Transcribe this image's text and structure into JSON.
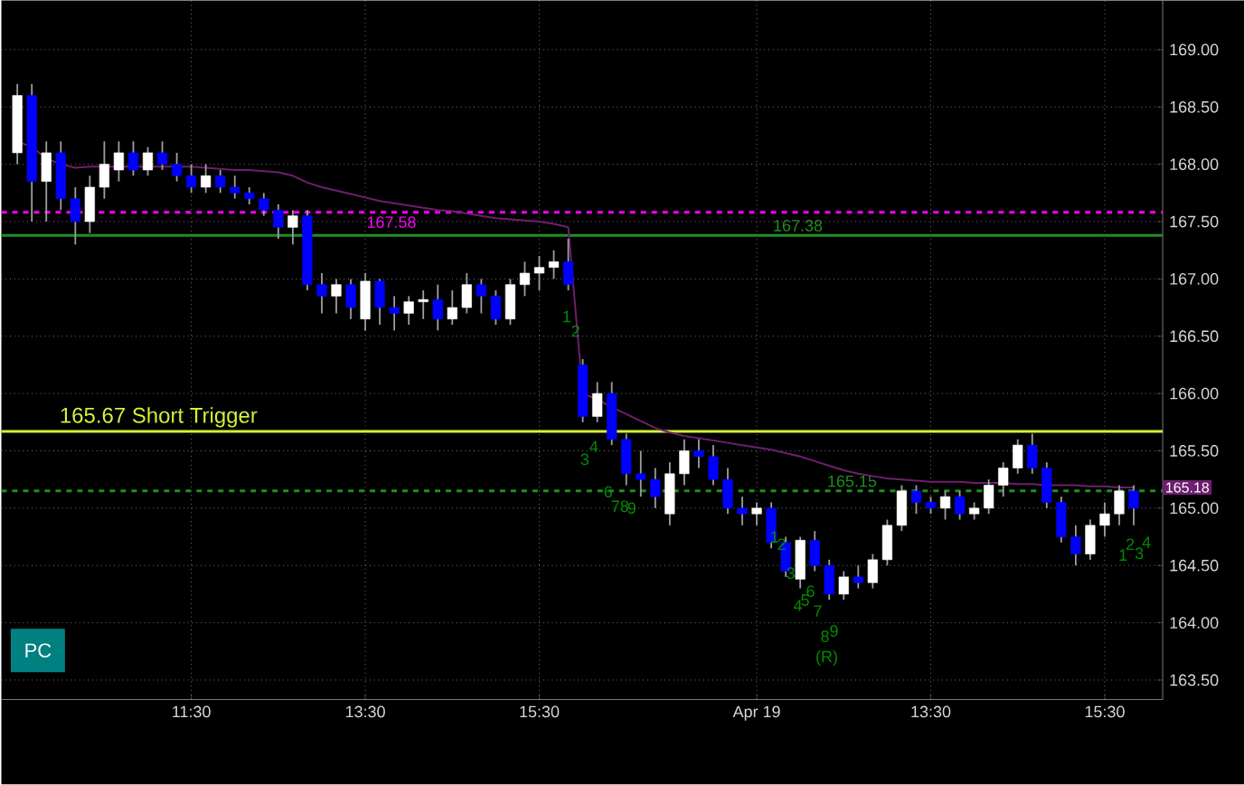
{
  "chart_data": {
    "type": "candlestick",
    "categories": [
      null,
      null,
      null,
      null,
      null,
      null,
      null,
      null,
      null,
      null,
      null,
      null,
      "11:30",
      null,
      null,
      null,
      null,
      null,
      null,
      null,
      null,
      null,
      null,
      null,
      "13:30",
      null,
      null,
      null,
      null,
      null,
      null,
      null,
      null,
      null,
      null,
      null,
      "15:30",
      null,
      null,
      null,
      null,
      null,
      null,
      null,
      null,
      null,
      null,
      null,
      null,
      null,
      null,
      "Apr 19",
      null,
      null,
      null,
      null,
      null,
      null,
      null,
      null,
      null,
      null,
      null,
      "13:30",
      null,
      null,
      null,
      null,
      null,
      null,
      null,
      null,
      null,
      null,
      null,
      "15:30",
      null,
      null
    ],
    "ohlc": [
      [
        168.1,
        168.7,
        168.0,
        168.6
      ],
      [
        168.6,
        168.7,
        167.5,
        167.85
      ],
      [
        167.85,
        168.2,
        167.5,
        168.1
      ],
      [
        168.1,
        168.2,
        167.6,
        167.7
      ],
      [
        167.7,
        167.8,
        167.3,
        167.5
      ],
      [
        167.5,
        167.9,
        167.4,
        167.8
      ],
      [
        167.8,
        168.2,
        167.7,
        168.0
      ],
      [
        167.95,
        168.2,
        167.85,
        168.1
      ],
      [
        168.1,
        168.2,
        167.9,
        167.95
      ],
      [
        167.95,
        168.15,
        167.9,
        168.1
      ],
      [
        168.1,
        168.2,
        167.95,
        168.0
      ],
      [
        168.0,
        168.1,
        167.85,
        167.9
      ],
      [
        167.9,
        168.0,
        167.75,
        167.8
      ],
      [
        167.8,
        168.0,
        167.75,
        167.9
      ],
      [
        167.9,
        167.95,
        167.75,
        167.8
      ],
      [
        167.8,
        167.9,
        167.7,
        167.75
      ],
      [
        167.75,
        167.8,
        167.65,
        167.7
      ],
      [
        167.7,
        167.75,
        167.55,
        167.6
      ],
      [
        167.6,
        167.65,
        167.35,
        167.45
      ],
      [
        167.45,
        167.6,
        167.3,
        167.55
      ],
      [
        167.55,
        167.6,
        166.9,
        166.95
      ],
      [
        166.95,
        167.05,
        166.7,
        166.85
      ],
      [
        166.85,
        167.0,
        166.7,
        166.95
      ],
      [
        166.95,
        167.0,
        166.65,
        166.75
      ],
      [
        166.65,
        167.05,
        166.55,
        166.98
      ],
      [
        166.98,
        167.0,
        166.6,
        166.75
      ],
      [
        166.75,
        166.85,
        166.55,
        166.7
      ],
      [
        166.7,
        166.85,
        166.6,
        166.8
      ],
      [
        166.8,
        166.9,
        166.65,
        166.82
      ],
      [
        166.82,
        166.95,
        166.55,
        166.65
      ],
      [
        166.65,
        166.9,
        166.6,
        166.75
      ],
      [
        166.75,
        167.05,
        166.7,
        166.95
      ],
      [
        166.95,
        167.0,
        166.7,
        166.85
      ],
      [
        166.85,
        166.9,
        166.6,
        166.65
      ],
      [
        166.65,
        167.0,
        166.6,
        166.95
      ],
      [
        166.95,
        167.15,
        166.85,
        167.05
      ],
      [
        167.05,
        167.2,
        166.9,
        167.1
      ],
      [
        167.1,
        167.25,
        167.0,
        167.15
      ],
      [
        167.15,
        167.35,
        166.9,
        166.95
      ],
      [
        166.25,
        166.3,
        165.75,
        165.8
      ],
      [
        165.8,
        166.1,
        165.75,
        166.0
      ],
      [
        166.0,
        166.1,
        165.55,
        165.6
      ],
      [
        165.6,
        165.65,
        165.2,
        165.3
      ],
      [
        165.3,
        165.5,
        165.1,
        165.25
      ],
      [
        165.25,
        165.35,
        165.0,
        165.1
      ],
      [
        164.95,
        165.4,
        164.85,
        165.3
      ],
      [
        165.3,
        165.6,
        165.2,
        165.5
      ],
      [
        165.5,
        165.6,
        165.35,
        165.45
      ],
      [
        165.45,
        165.55,
        165.2,
        165.25
      ],
      [
        165.25,
        165.35,
        164.95,
        165.0
      ],
      [
        165.0,
        165.1,
        164.85,
        164.95
      ],
      [
        164.95,
        165.05,
        164.85,
        165.0
      ],
      [
        165.0,
        165.05,
        164.65,
        164.7
      ],
      [
        164.7,
        164.75,
        164.4,
        164.45
      ],
      [
        164.38,
        164.75,
        164.3,
        164.72
      ],
      [
        164.72,
        164.8,
        164.45,
        164.5
      ],
      [
        164.5,
        164.55,
        164.2,
        164.25
      ],
      [
        164.25,
        164.45,
        164.2,
        164.4
      ],
      [
        164.4,
        164.5,
        164.3,
        164.35
      ],
      [
        164.35,
        164.6,
        164.3,
        164.55
      ],
      [
        164.55,
        164.9,
        164.5,
        164.85
      ],
      [
        164.85,
        165.2,
        164.8,
        165.15
      ],
      [
        165.15,
        165.2,
        164.95,
        165.05
      ],
      [
        165.05,
        165.1,
        164.95,
        165.0
      ],
      [
        165.0,
        165.15,
        164.9,
        165.1
      ],
      [
        165.1,
        165.15,
        164.9,
        164.95
      ],
      [
        164.95,
        165.05,
        164.9,
        165.0
      ],
      [
        165.0,
        165.25,
        164.95,
        165.2
      ],
      [
        165.2,
        165.4,
        165.1,
        165.35
      ],
      [
        165.35,
        165.6,
        165.3,
        165.55
      ],
      [
        165.55,
        165.65,
        165.3,
        165.35
      ],
      [
        165.35,
        165.4,
        165.0,
        165.05
      ],
      [
        165.05,
        165.1,
        164.7,
        164.75
      ],
      [
        164.75,
        164.85,
        164.5,
        164.6
      ],
      [
        164.6,
        164.9,
        164.55,
        164.85
      ],
      [
        164.85,
        165.05,
        164.75,
        164.95
      ],
      [
        164.95,
        165.2,
        164.85,
        165.15
      ],
      [
        165.15,
        165.2,
        164.85,
        165.0
      ]
    ],
    "colors": [
      "#ffffff",
      "#0000ff",
      "#ffffff",
      "#0000ff",
      "#0000ff",
      "#ffffff",
      "#ffffff",
      "#ffffff",
      "#0000ff",
      "#ffffff",
      "#0000ff",
      "#0000ff",
      "#0000ff",
      "#ffffff",
      "#0000ff",
      "#0000ff",
      "#0000ff",
      "#0000ff",
      "#0000ff",
      "#ffffff",
      "#0000ff",
      "#0000ff",
      "#ffffff",
      "#0000ff",
      "#ffffff",
      "#0000ff",
      "#0000ff",
      "#ffffff",
      "#ffffff",
      "#0000ff",
      "#ffffff",
      "#ffffff",
      "#0000ff",
      "#0000ff",
      "#ffffff",
      "#ffffff",
      "#ffffff",
      "#ffffff",
      "#0000ff",
      "#0000ff",
      "#ffffff",
      "#0000ff",
      "#0000ff",
      "#0000ff",
      "#0000ff",
      "#ffffff",
      "#ffffff",
      "#0000ff",
      "#0000ff",
      "#0000ff",
      "#0000ff",
      "#ffffff",
      "#0000ff",
      "#0000ff",
      "#ffffff",
      "#0000ff",
      "#0000ff",
      "#ffffff",
      "#0000ff",
      "#ffffff",
      "#ffffff",
      "#ffffff",
      "#0000ff",
      "#0000ff",
      "#ffffff",
      "#0000ff",
      "#ffffff",
      "#ffffff",
      "#ffffff",
      "#ffffff",
      "#0000ff",
      "#0000ff",
      "#0000ff",
      "#0000ff",
      "#ffffff",
      "#ffffff",
      "#ffffff",
      "#0000ff"
    ],
    "series": [
      {
        "type": "line",
        "color": "#6e1f6e",
        "values": [
          168.2,
          168.15,
          168.05,
          168.0,
          167.97,
          167.98,
          167.98,
          167.98,
          167.98,
          167.98,
          167.98,
          167.98,
          167.98,
          167.97,
          167.96,
          167.95,
          167.95,
          167.94,
          167.93,
          167.9,
          167.84,
          167.8,
          167.77,
          167.74,
          167.71,
          167.68,
          167.66,
          167.64,
          167.62,
          167.6,
          167.59,
          167.57,
          167.55,
          167.53,
          167.52,
          167.51,
          167.5,
          167.48,
          167.45,
          166.0,
          165.95,
          165.88,
          165.82,
          165.76,
          165.7,
          165.66,
          165.63,
          165.61,
          165.59,
          165.57,
          165.55,
          165.53,
          165.51,
          165.48,
          165.45,
          165.41,
          165.37,
          165.33,
          165.3,
          165.28,
          165.26,
          165.25,
          165.24,
          165.23,
          165.23,
          165.23,
          165.22,
          165.22,
          165.22,
          165.21,
          165.21,
          165.2,
          165.2,
          165.2,
          165.19,
          165.19,
          165.18,
          165.18
        ]
      }
    ],
    "ylim": [
      163.33,
      169.43
    ],
    "yticks": [
      {
        "value": 163.5,
        "label": "163.50"
      },
      {
        "value": 164,
        "label": "164.00"
      },
      {
        "value": 164.5,
        "label": "164.50"
      },
      {
        "value": 165,
        "label": "165.00"
      },
      {
        "value": 165.5,
        "label": "165.50"
      },
      {
        "value": 166,
        "label": "166.00"
      },
      {
        "value": 166.5,
        "label": "166.50"
      },
      {
        "value": 167,
        "label": "167.00"
      },
      {
        "value": 167.5,
        "label": "167.50"
      },
      {
        "value": 168,
        "label": "168.00"
      },
      {
        "value": 168.5,
        "label": "168.50"
      },
      {
        "value": 169,
        "label": "169.00"
      }
    ],
    "grid": true,
    "ref_lines": [
      {
        "axis": "y",
        "value": 165.67,
        "label": "165.67 Short Trigger",
        "color": "#d4f03a"
      },
      {
        "axis": "y",
        "value": 167.58,
        "label": "167.58",
        "color": "#ff00ff",
        "line_style": "dashed"
      },
      {
        "axis": "y",
        "value": 167.38,
        "label": "167.38",
        "color": "#1f8f1f"
      },
      {
        "axis": "y",
        "value": 165.15,
        "label": "165.15",
        "color": "#1f8f1f",
        "line_style": "dashed"
      }
    ],
    "annotations": [
      "1",
      "2",
      "3",
      "4",
      "6",
      "7",
      "8",
      "9",
      "1",
      "2",
      "3",
      "4",
      "5",
      "6",
      "7",
      "8",
      "9",
      "(R)",
      "1",
      "2",
      "3",
      "4",
      "165.18",
      "PC"
    ]
  }
}
